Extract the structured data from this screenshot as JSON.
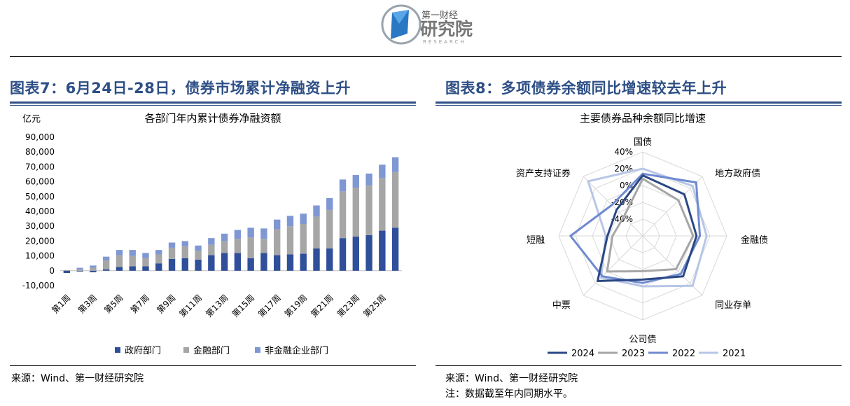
{
  "header": {
    "logo_line1": "第一财经",
    "logo_line2": "研究院",
    "logo_line3": "RESEARCH"
  },
  "left": {
    "panel_title": "图表7：6月24日-28日，债券市场累计净融资上升",
    "source": "来源：Wind、第一财经研究院"
  },
  "right": {
    "panel_title": "图表8：多项债券余额同比增速较去年上升",
    "source": "来源：Wind、第一财经研究院",
    "note": "注：数据截至年内同期水平。"
  },
  "colors": {
    "title_blue": "#2e4f86",
    "gov": "#2f4f9a",
    "fin": "#a6a6a6",
    "nonfin": "#7f97d3",
    "y2024": "#2b4884",
    "y2023": "#a6a6a6",
    "y2022": "#6f8ad0",
    "y2021": "#b7c6e7"
  },
  "chart_data": [
    {
      "type": "bar",
      "stacked": true,
      "title": "各部门年内累计债券净融资额",
      "unit_label": "亿元",
      "ylim": [
        -10000,
        90000
      ],
      "yticks": [
        "-10,000",
        "0",
        "10,000",
        "20,000",
        "30,000",
        "40,000",
        "50,000",
        "60,000",
        "70,000",
        "80,000",
        "90,000"
      ],
      "ytick_values": [
        -10000,
        0,
        10000,
        20000,
        30000,
        40000,
        50000,
        60000,
        70000,
        80000,
        90000
      ],
      "categories": [
        "第1周",
        "第2周",
        "第3周",
        "第4周",
        "第5周",
        "第6周",
        "第7周",
        "第8周",
        "第9周",
        "第10周",
        "第11周",
        "第12周",
        "第13周",
        "第14周",
        "第15周",
        "第16周",
        "第17周",
        "第18周",
        "第19周",
        "第20周",
        "第21周",
        "第22周",
        "第23周",
        "第24周",
        "第25周",
        "第26周"
      ],
      "xtick_labels": [
        "第1周",
        "第3周",
        "第5周",
        "第7周",
        "第9周",
        "第11周",
        "第13周",
        "第15周",
        "第17周",
        "第19周",
        "第21周",
        "第23周",
        "第25周"
      ],
      "legend": "bottom",
      "series": [
        {
          "name": "政府部门",
          "values": [
            -1500,
            -500,
            -1000,
            1000,
            2500,
            3000,
            3000,
            5000,
            8000,
            8500,
            7500,
            10500,
            12000,
            12000,
            8500,
            12000,
            10500,
            11000,
            11500,
            15000,
            15000,
            22000,
            23000,
            24000,
            27000,
            29000
          ]
        },
        {
          "name": "金融部门",
          "values": [
            500,
            1000,
            2000,
            6000,
            8000,
            7000,
            5500,
            6000,
            7500,
            8000,
            6000,
            7000,
            8000,
            9500,
            14000,
            9500,
            17500,
            19000,
            20000,
            21500,
            26000,
            31500,
            33000,
            33500,
            35500,
            37500
          ]
        },
        {
          "name": "非金融企业部门",
          "values": [
            0,
            1000,
            1500,
            2500,
            3500,
            4000,
            3500,
            3000,
            3500,
            3500,
            3500,
            4500,
            5000,
            6000,
            6500,
            7000,
            6500,
            7000,
            7000,
            7500,
            8000,
            8000,
            8500,
            8000,
            9000,
            10000
          ]
        }
      ]
    },
    {
      "type": "radar",
      "title": "主要债券品种余额同比增速",
      "axes": [
        "国债",
        "地方政府债",
        "金融债",
        "同业存单",
        "公司债",
        "中票",
        "短融",
        "资产支持证券"
      ],
      "rlim": [
        -60,
        40
      ],
      "rticks": [
        "40%",
        "20%",
        "0%",
        "-20%",
        "-40%"
      ],
      "rtick_values": [
        40,
        20,
        0,
        -20,
        -40
      ],
      "legend": "bottom",
      "series": [
        {
          "name": "2024",
          "values": [
            12,
            10,
            4,
            8,
            -8,
            16,
            -18,
            -16
          ]
        },
        {
          "name": "2023",
          "values": [
            8,
            0,
            0,
            -4,
            -18,
            0,
            -24,
            -28
          ]
        },
        {
          "name": "2022",
          "values": [
            14,
            30,
            8,
            4,
            -4,
            8,
            26,
            -8
          ]
        },
        {
          "name": "2021",
          "values": [
            20,
            24,
            16,
            24,
            0,
            10,
            -16,
            32
          ]
        }
      ]
    }
  ]
}
